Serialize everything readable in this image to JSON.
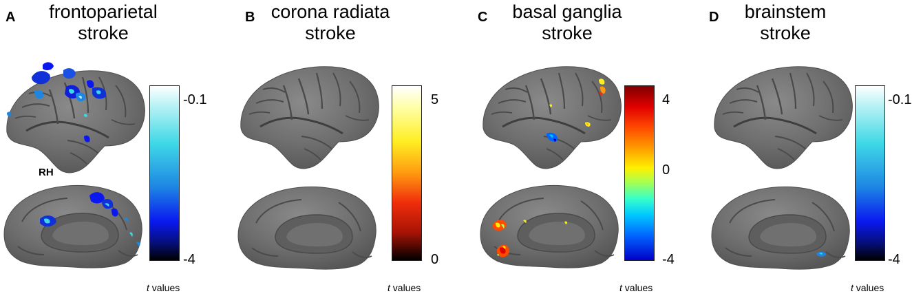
{
  "panels": [
    {
      "letter": "A",
      "title_line1": "frontoparietal",
      "title_line2": "stroke",
      "hemisphere": "RH",
      "colormap": "cold",
      "scale_max": "-0.1",
      "scale_min": "-4",
      "scale_unit": "values",
      "scale_var": "t"
    },
    {
      "letter": "B",
      "title_line1": "corona radiata",
      "title_line2": "stroke",
      "colormap": "hot",
      "scale_max": "5",
      "scale_min": "0",
      "scale_unit": "values",
      "scale_var": "t"
    },
    {
      "letter": "C",
      "title_line1": "basal ganglia",
      "title_line2": "stroke",
      "colormap": "jet",
      "scale_max": "4",
      "scale_mid": "0",
      "scale_min": "-4",
      "scale_unit": "values",
      "scale_var": "t"
    },
    {
      "letter": "D",
      "title_line1": "brainstem",
      "title_line2": "stroke",
      "colormap": "cold",
      "scale_max": "-0.1",
      "scale_min": "-4",
      "scale_unit": "values",
      "scale_var": "t"
    }
  ],
  "colors": {
    "cortex": "#6d6d6d",
    "sulcus": "#4a4a4a",
    "gyrus": "#858585"
  }
}
